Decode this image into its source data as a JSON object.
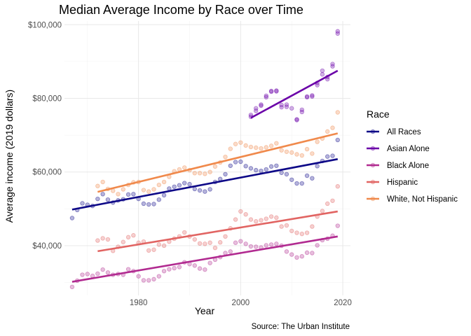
{
  "chart_data": {
    "type": "scatter",
    "title": "Median Average Income by Race over Time",
    "xlabel": "Year",
    "ylabel": "Average income (2019 dollars)",
    "caption": "Source: The Urban Institute",
    "xlim": [
      1965.5,
      2021.5
    ],
    "ylim": [
      26500,
      101000
    ],
    "x_ticks": [
      1980,
      2000,
      2020
    ],
    "x_tick_labels": [
      "1980",
      "2000",
      "2020"
    ],
    "y_ticks": [
      40000,
      60000,
      80000,
      100000
    ],
    "y_tick_labels": [
      "$40,000",
      "$60,000",
      "$80,000",
      "$100,000"
    ],
    "grid": true,
    "legend": {
      "title": "Race",
      "position": "right"
    },
    "series": [
      {
        "name": "All Races",
        "color": "#0d0887",
        "trend": {
          "x": [
            1967,
            2019
          ],
          "y": [
            49800,
            63500
          ]
        },
        "points": [
          [
            1967,
            47500
          ],
          [
            1968,
            49700
          ],
          [
            1969,
            51500
          ],
          [
            1970,
            51100
          ],
          [
            1971,
            50800
          ],
          [
            1972,
            52700
          ],
          [
            1973,
            54000
          ],
          [
            1974,
            52500
          ],
          [
            1975,
            51700
          ],
          [
            1976,
            52300
          ],
          [
            1977,
            52600
          ],
          [
            1978,
            53900
          ],
          [
            1979,
            54000
          ],
          [
            1980,
            52700
          ],
          [
            1981,
            51400
          ],
          [
            1982,
            51200
          ],
          [
            1983,
            51300
          ],
          [
            1984,
            52500
          ],
          [
            1985,
            53700
          ],
          [
            1986,
            55500
          ],
          [
            1987,
            56000
          ],
          [
            1988,
            56400
          ],
          [
            1989,
            57000
          ],
          [
            1990,
            56700
          ],
          [
            1991,
            55400
          ],
          [
            1992,
            55000
          ],
          [
            1993,
            54700
          ],
          [
            1994,
            55300
          ],
          [
            1995,
            57300
          ],
          [
            1996,
            58100
          ],
          [
            1997,
            59400
          ],
          [
            1998,
            61700
          ],
          [
            1999,
            62700
          ],
          [
            2000,
            62800
          ],
          [
            2001,
            61600
          ],
          [
            2002,
            61000
          ],
          [
            2003,
            60500
          ],
          [
            2004,
            60300
          ],
          [
            2005,
            60700
          ],
          [
            2006,
            61500
          ],
          [
            2007,
            61700
          ],
          [
            2008,
            59800
          ],
          [
            2009,
            59400
          ],
          [
            2010,
            57900
          ],
          [
            2011,
            56900
          ],
          [
            2012,
            56900
          ],
          [
            2013,
            59000
          ],
          [
            2014,
            58300
          ],
          [
            2015,
            61600
          ],
          [
            2016,
            63000
          ],
          [
            2017,
            64200
          ],
          [
            2018,
            64400
          ],
          [
            2019,
            68700
          ]
        ]
      },
      {
        "name": "Asian Alone",
        "color": "#6a00a8",
        "trend": {
          "x": [
            2002,
            2019
          ],
          "y": [
            74700,
            87500
          ]
        },
        "points": [
          [
            2002,
            75500
          ],
          [
            2002,
            75000
          ],
          [
            2003,
            76600
          ],
          [
            2003,
            77300
          ],
          [
            2004,
            78000
          ],
          [
            2004,
            78300
          ],
          [
            2005,
            80300
          ],
          [
            2005,
            80700
          ],
          [
            2006,
            81800
          ],
          [
            2006,
            82000
          ],
          [
            2007,
            82100
          ],
          [
            2007,
            81900
          ],
          [
            2008,
            77600
          ],
          [
            2008,
            78200
          ],
          [
            2009,
            77700
          ],
          [
            2009,
            78300
          ],
          [
            2010,
            77300
          ],
          [
            2011,
            74300
          ],
          [
            2011,
            74100
          ],
          [
            2012,
            76300
          ],
          [
            2012,
            76900
          ],
          [
            2013,
            80300
          ],
          [
            2013,
            80500
          ],
          [
            2014,
            80500
          ],
          [
            2014,
            80800
          ],
          [
            2015,
            83600
          ],
          [
            2015,
            84200
          ],
          [
            2016,
            86500
          ],
          [
            2016,
            87500
          ],
          [
            2017,
            85200
          ],
          [
            2017,
            85800
          ],
          [
            2018,
            88700
          ],
          [
            2018,
            89300
          ],
          [
            2019,
            98200
          ],
          [
            2019,
            97600
          ]
        ]
      },
      {
        "name": "Black Alone",
        "color": "#b12a90",
        "trend": {
          "x": [
            1967,
            2019
          ],
          "y": [
            30200,
            42500
          ]
        },
        "points": [
          [
            1967,
            28800
          ],
          [
            1968,
            30500
          ],
          [
            1969,
            32100
          ],
          [
            1970,
            32300
          ],
          [
            1971,
            31800
          ],
          [
            1972,
            32400
          ],
          [
            1973,
            33500
          ],
          [
            1974,
            32700
          ],
          [
            1975,
            32100
          ],
          [
            1976,
            32300
          ],
          [
            1977,
            32100
          ],
          [
            1978,
            33600
          ],
          [
            1979,
            33100
          ],
          [
            1980,
            31700
          ],
          [
            1981,
            30600
          ],
          [
            1982,
            30600
          ],
          [
            1983,
            30900
          ],
          [
            1984,
            31700
          ],
          [
            1985,
            33100
          ],
          [
            1986,
            33600
          ],
          [
            1987,
            33900
          ],
          [
            1988,
            34200
          ],
          [
            1989,
            35500
          ],
          [
            1990,
            35000
          ],
          [
            1991,
            34600
          ],
          [
            1992,
            33800
          ],
          [
            1993,
            33500
          ],
          [
            1994,
            35300
          ],
          [
            1995,
            36200
          ],
          [
            1996,
            36900
          ],
          [
            1997,
            38000
          ],
          [
            1998,
            38400
          ],
          [
            1999,
            40800
          ],
          [
            2000,
            41200
          ],
          [
            2001,
            40500
          ],
          [
            2002,
            39800
          ],
          [
            2003,
            39700
          ],
          [
            2004,
            39500
          ],
          [
            2005,
            40100
          ],
          [
            2006,
            40300
          ],
          [
            2007,
            40500
          ],
          [
            2008,
            40000
          ],
          [
            2009,
            38400
          ],
          [
            2010,
            37600
          ],
          [
            2011,
            36800
          ],
          [
            2012,
            37100
          ],
          [
            2013,
            38100
          ],
          [
            2014,
            38000
          ],
          [
            2015,
            40100
          ],
          [
            2016,
            41500
          ],
          [
            2017,
            41900
          ],
          [
            2018,
            42700
          ],
          [
            2019,
            45400
          ]
        ]
      },
      {
        "name": "Hispanic",
        "color": "#e16462",
        "trend": {
          "x": [
            1972,
            2019
          ],
          "y": [
            38500,
            49300
          ]
        },
        "points": [
          [
            1972,
            41400
          ],
          [
            1973,
            42000
          ],
          [
            1974,
            41700
          ],
          [
            1975,
            38600
          ],
          [
            1976,
            39700
          ],
          [
            1977,
            41000
          ],
          [
            1978,
            42300
          ],
          [
            1979,
            42800
          ],
          [
            1980,
            40800
          ],
          [
            1981,
            41100
          ],
          [
            1982,
            38700
          ],
          [
            1983,
            38900
          ],
          [
            1984,
            40300
          ],
          [
            1985,
            40000
          ],
          [
            1986,
            41100
          ],
          [
            1987,
            41900
          ],
          [
            1988,
            42500
          ],
          [
            1989,
            43600
          ],
          [
            1990,
            42500
          ],
          [
            1991,
            41700
          ],
          [
            1992,
            40600
          ],
          [
            1993,
            40500
          ],
          [
            1994,
            40800
          ],
          [
            1995,
            39400
          ],
          [
            1996,
            40900
          ],
          [
            1997,
            42500
          ],
          [
            1998,
            44700
          ],
          [
            1999,
            47100
          ],
          [
            2000,
            49300
          ],
          [
            2001,
            48500
          ],
          [
            2002,
            47100
          ],
          [
            2003,
            46600
          ],
          [
            2004,
            46900
          ],
          [
            2005,
            47300
          ],
          [
            2006,
            47900
          ],
          [
            2007,
            47600
          ],
          [
            2008,
            45200
          ],
          [
            2009,
            45500
          ],
          [
            2010,
            44000
          ],
          [
            2011,
            43500
          ],
          [
            2012,
            43200
          ],
          [
            2013,
            43500
          ],
          [
            2014,
            45200
          ],
          [
            2015,
            47900
          ],
          [
            2016,
            49400
          ],
          [
            2017,
            51400
          ],
          [
            2018,
            52200
          ],
          [
            2019,
            56100
          ]
        ]
      },
      {
        "name": "White, Not Hispanic",
        "color": "#f0894b",
        "trend": {
          "x": [
            1972,
            2019
          ],
          "y": [
            54600,
            70500
          ]
        },
        "points": [
          [
            1972,
            56200
          ],
          [
            1973,
            57300
          ],
          [
            1974,
            55400
          ],
          [
            1975,
            54900
          ],
          [
            1976,
            54000
          ],
          [
            1977,
            55300
          ],
          [
            1978,
            56500
          ],
          [
            1979,
            57200
          ],
          [
            1980,
            57300
          ],
          [
            1981,
            55100
          ],
          [
            1982,
            54700
          ],
          [
            1983,
            55300
          ],
          [
            1984,
            56500
          ],
          [
            1985,
            57300
          ],
          [
            1986,
            58700
          ],
          [
            1987,
            60200
          ],
          [
            1988,
            60700
          ],
          [
            1989,
            61200
          ],
          [
            1990,
            60500
          ],
          [
            1991,
            59700
          ],
          [
            1992,
            59700
          ],
          [
            1993,
            59500
          ],
          [
            1994,
            60000
          ],
          [
            1995,
            61500
          ],
          [
            1996,
            62600
          ],
          [
            1997,
            64100
          ],
          [
            1998,
            66300
          ],
          [
            1999,
            67600
          ],
          [
            2000,
            68000
          ],
          [
            2001,
            67200
          ],
          [
            2002,
            66800
          ],
          [
            2003,
            66600
          ],
          [
            2004,
            66400
          ],
          [
            2005,
            66700
          ],
          [
            2006,
            67100
          ],
          [
            2007,
            67800
          ],
          [
            2008,
            65900
          ],
          [
            2009,
            65500
          ],
          [
            2010,
            65300
          ],
          [
            2011,
            64800
          ],
          [
            2012,
            64500
          ],
          [
            2013,
            66200
          ],
          [
            2014,
            65000
          ],
          [
            2015,
            68200
          ],
          [
            2016,
            69100
          ],
          [
            2017,
            71000
          ],
          [
            2018,
            72000
          ],
          [
            2019,
            76200
          ]
        ]
      }
    ]
  }
}
